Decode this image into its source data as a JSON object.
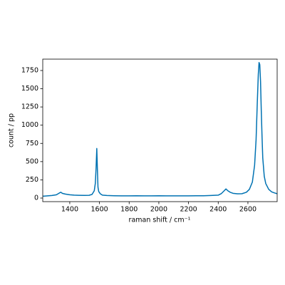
{
  "chart_data": {
    "type": "line",
    "x_label": "raman shift / cm⁻¹",
    "y_label": "count / pp",
    "color": "#0072b2",
    "xlim": [
      1218,
      2797
    ],
    "ylim": [
      -49,
      1906
    ],
    "xticks": [
      1400,
      1600,
      1800,
      2000,
      2200,
      2400,
      2600
    ],
    "yticks": [
      0,
      250,
      500,
      750,
      1000,
      1250,
      1500,
      1750
    ],
    "x": [
      1220,
      1250,
      1280,
      1310,
      1330,
      1340,
      1350,
      1370,
      1400,
      1430,
      1460,
      1500,
      1530,
      1550,
      1565,
      1572,
      1577,
      1582,
      1586,
      1590,
      1595,
      1605,
      1620,
      1650,
      1700,
      1750,
      1800,
      1850,
      1900,
      1950,
      2000,
      2050,
      2100,
      2150,
      2200,
      2250,
      2300,
      2350,
      2400,
      2420,
      2440,
      2452,
      2465,
      2480,
      2500,
      2530,
      2560,
      2590,
      2610,
      2630,
      2645,
      2655,
      2663,
      2670,
      2675,
      2680,
      2685,
      2690,
      2695,
      2700,
      2710,
      2720,
      2740,
      2760,
      2780,
      2797
    ],
    "values": [
      25,
      30,
      35,
      45,
      70,
      80,
      65,
      55,
      45,
      40,
      38,
      36,
      38,
      50,
      100,
      200,
      400,
      680,
      400,
      150,
      90,
      60,
      40,
      35,
      32,
      30,
      30,
      32,
      30,
      30,
      32,
      30,
      30,
      30,
      30,
      32,
      32,
      35,
      40,
      60,
      100,
      125,
      100,
      80,
      65,
      58,
      60,
      80,
      120,
      220,
      450,
      800,
      1300,
      1700,
      1860,
      1830,
      1600,
      1200,
      850,
      550,
      300,
      200,
      120,
      85,
      70,
      60
    ]
  }
}
